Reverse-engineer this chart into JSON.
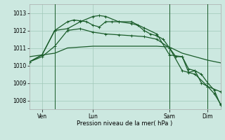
{
  "bg_color": "#cce8e0",
  "grid_color": "#a0c8b8",
  "line_color": "#1a5c2a",
  "xlabel": "Pression niveau de la mer( hPa )",
  "ylim": [
    1007.5,
    1013.5
  ],
  "yticks": [
    1008,
    1009,
    1010,
    1011,
    1012,
    1013
  ],
  "day_labels": [
    "Ven",
    "Lun",
    "Sam",
    "Dim"
  ],
  "day_positions": [
    2,
    10,
    22,
    28
  ],
  "vline_positions": [
    4,
    22,
    28
  ],
  "xlim": [
    0,
    30
  ],
  "series1_x": [
    0,
    2,
    4,
    6,
    8,
    10,
    12,
    14,
    16,
    18,
    20,
    22,
    24,
    26,
    28,
    30
  ],
  "series1_y": [
    1010.5,
    1010.6,
    1010.7,
    1011.0,
    1011.05,
    1011.1,
    1011.1,
    1011.1,
    1011.1,
    1011.1,
    1011.1,
    1011.05,
    1010.7,
    1010.5,
    1010.3,
    1010.15
  ],
  "series2_x": [
    0,
    2,
    4,
    6,
    8,
    10,
    12,
    14,
    16,
    18,
    20,
    22,
    24,
    26,
    28,
    30
  ],
  "series2_y": [
    1010.2,
    1010.5,
    1011.1,
    1012.0,
    1012.1,
    1011.9,
    1011.8,
    1011.75,
    1011.7,
    1011.65,
    1011.5,
    1011.0,
    1009.7,
    1009.5,
    1008.8,
    1008.5
  ],
  "series3_x": [
    0,
    2,
    4,
    6,
    8,
    10,
    11,
    12,
    14,
    16,
    18,
    20,
    22,
    24,
    25,
    26,
    27,
    28,
    29,
    30
  ],
  "series3_y": [
    1010.2,
    1010.6,
    1012.0,
    1012.1,
    1012.5,
    1012.8,
    1012.85,
    1012.8,
    1012.5,
    1012.5,
    1012.15,
    1011.8,
    1010.6,
    1010.5,
    1009.6,
    1009.7,
    1009.0,
    1008.8,
    1008.4,
    1007.8
  ],
  "series4_x": [
    0,
    2,
    4,
    6,
    7,
    8,
    9,
    10,
    11,
    12,
    13,
    14,
    16,
    17,
    18,
    19,
    20,
    21,
    22,
    23,
    24,
    25,
    26,
    27,
    28,
    29,
    30
  ],
  "series4_y": [
    1010.2,
    1010.6,
    1012.0,
    1012.5,
    1012.6,
    1012.55,
    1012.5,
    1012.3,
    1012.2,
    1012.5,
    1012.5,
    1012.5,
    1012.4,
    1012.3,
    1012.0,
    1011.8,
    1011.7,
    1011.5,
    1011.0,
    1010.5,
    1010.5,
    1009.8,
    1009.7,
    1009.5,
    1009.0,
    1008.6,
    1007.75
  ]
}
